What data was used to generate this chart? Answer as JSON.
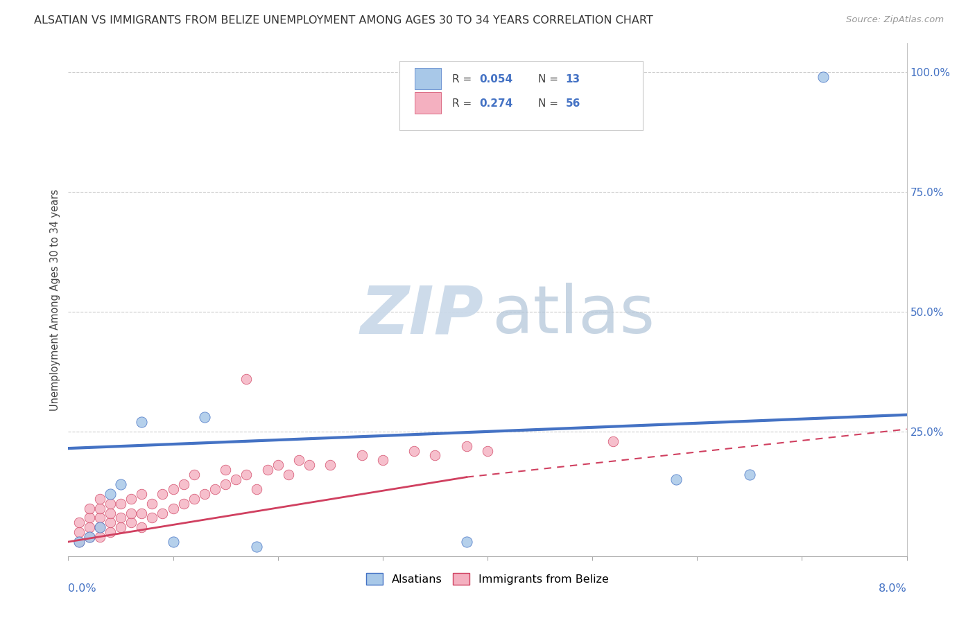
{
  "title": "ALSATIAN VS IMMIGRANTS FROM BELIZE UNEMPLOYMENT AMONG AGES 30 TO 34 YEARS CORRELATION CHART",
  "source": "Source: ZipAtlas.com",
  "ylabel": "Unemployment Among Ages 30 to 34 years",
  "ytick_labels": [
    "100.0%",
    "75.0%",
    "50.0%",
    "25.0%"
  ],
  "ytick_values": [
    1.0,
    0.75,
    0.5,
    0.25
  ],
  "xlim": [
    0.0,
    0.08
  ],
  "ylim": [
    -0.01,
    1.06
  ],
  "legend_r1": "R = 0.054",
  "legend_n1": "N = 13",
  "legend_r2": "R = 0.274",
  "legend_n2": "N = 56",
  "color_alsatian": "#a8c8e8",
  "color_belize": "#f4b0c0",
  "trendline_alsatian_color": "#4472c4",
  "trendline_belize_color": "#d04060",
  "watermark_zip_color": "#c8d8e8",
  "watermark_atlas_color": "#b0c4d8",
  "alsatian_x": [
    0.001,
    0.002,
    0.003,
    0.004,
    0.005,
    0.007,
    0.01,
    0.013,
    0.018,
    0.038,
    0.058,
    0.065,
    0.072
  ],
  "alsatian_y": [
    0.02,
    0.03,
    0.05,
    0.12,
    0.14,
    0.27,
    0.02,
    0.28,
    0.01,
    0.02,
    0.15,
    0.16,
    0.99
  ],
  "belize_x": [
    0.001,
    0.001,
    0.001,
    0.002,
    0.002,
    0.002,
    0.002,
    0.003,
    0.003,
    0.003,
    0.003,
    0.003,
    0.004,
    0.004,
    0.004,
    0.004,
    0.005,
    0.005,
    0.005,
    0.006,
    0.006,
    0.006,
    0.007,
    0.007,
    0.007,
    0.008,
    0.008,
    0.009,
    0.009,
    0.01,
    0.01,
    0.011,
    0.011,
    0.012,
    0.012,
    0.013,
    0.014,
    0.015,
    0.015,
    0.016,
    0.017,
    0.017,
    0.018,
    0.019,
    0.02,
    0.021,
    0.022,
    0.023,
    0.025,
    0.028,
    0.03,
    0.033,
    0.035,
    0.038,
    0.04,
    0.052
  ],
  "belize_y": [
    0.02,
    0.04,
    0.06,
    0.03,
    0.05,
    0.07,
    0.09,
    0.03,
    0.05,
    0.07,
    0.09,
    0.11,
    0.04,
    0.06,
    0.08,
    0.1,
    0.05,
    0.07,
    0.1,
    0.06,
    0.08,
    0.11,
    0.05,
    0.08,
    0.12,
    0.07,
    0.1,
    0.08,
    0.12,
    0.09,
    0.13,
    0.1,
    0.14,
    0.11,
    0.16,
    0.12,
    0.13,
    0.14,
    0.17,
    0.15,
    0.16,
    0.36,
    0.13,
    0.17,
    0.18,
    0.16,
    0.19,
    0.18,
    0.18,
    0.2,
    0.19,
    0.21,
    0.2,
    0.22,
    0.21,
    0.23
  ],
  "trendline_alsatian_x0": 0.0,
  "trendline_alsatian_x1": 0.08,
  "trendline_alsatian_y0": 0.215,
  "trendline_alsatian_y1": 0.285,
  "trendline_belize_x0": 0.0,
  "trendline_belize_xsolid": 0.038,
  "trendline_belize_x1": 0.08,
  "trendline_belize_y0": 0.02,
  "trendline_belize_ysolid": 0.155,
  "trendline_belize_y1": 0.255,
  "background_color": "#ffffff",
  "grid_color": "#cccccc"
}
